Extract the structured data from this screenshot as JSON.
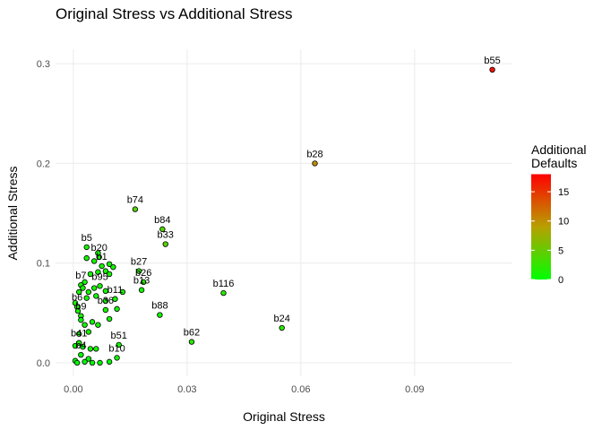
{
  "chart_data": {
    "type": "scatter",
    "title": "Original Stress vs Additional Stress",
    "x_label": "Original Stress",
    "y_label": "Additional Stress",
    "xlim": [
      -0.0047,
      0.1158
    ],
    "ylim": [
      -0.0135,
      0.3145
    ],
    "xticks": [
      {
        "value": 0,
        "label": "0.00"
      },
      0.03,
      0.06,
      0.09
    ],
    "yticks": [
      {
        "value": 0,
        "label": "0.0"
      },
      0.1,
      0.2,
      0.3
    ],
    "grid": true,
    "legend_title": "Additional Defaults",
    "color_scale": {
      "low": "#00ff00",
      "mid": "#b8a000",
      "high": "#ff0000",
      "limits": [
        0,
        18
      ],
      "ticks": [
        0,
        5,
        10,
        15
      ]
    },
    "series": [
      {
        "x": [
          0.1105,
          0.0637,
          0.0163,
          0.0235,
          0.0243,
          0.0396,
          0.055,
          0.0312,
          0.0228,
          0.0173,
          0.0185,
          0.018,
          0.0035,
          0.0068,
          0.0075,
          0.007,
          0.002,
          0.011,
          0.0085,
          0.001,
          0.002,
          0.012,
          0.0115,
          0.0015,
          0.002,
          0.0005,
          0.001,
          0.003,
          0.004,
          0.005,
          0.007,
          0.0095,
          0.0045,
          0.006,
          0.0005,
          0.0025,
          0.0015,
          0.004,
          0.003,
          0.005,
          0.0065,
          0.002,
          0.0095,
          0.0005,
          0.0035,
          0.006,
          0.0085,
          0.0115,
          0.0015,
          0.004,
          0.0055,
          0.0085,
          0.013,
          0.003,
          0.0045,
          0.0065,
          0.0085,
          0.0105,
          0.0095,
          0.0035,
          0.0055,
          0.0065,
          0.0095,
          0.0025,
          0.0012
        ],
        "values": [
          0.294,
          0.2,
          0.154,
          0.134,
          0.119,
          0.07,
          0.035,
          0.021,
          0.048,
          0.092,
          0.081,
          0.073,
          0.116,
          0.106,
          0.097,
          0.077,
          0.078,
          0.064,
          0.053,
          0.056,
          0.047,
          0.018,
          0.005,
          0.02,
          0.008,
          0.002,
          0.0,
          0.001,
          0.004,
          0.0,
          0.0,
          0.001,
          0.014,
          0.014,
          0.017,
          0.016,
          0.029,
          0.031,
          0.038,
          0.041,
          0.038,
          0.043,
          0.044,
          0.06,
          0.065,
          0.067,
          0.062,
          0.054,
          0.071,
          0.071,
          0.075,
          0.072,
          0.071,
          0.081,
          0.089,
          0.091,
          0.092,
          0.096,
          0.099,
          0.105,
          0.102,
          0.11,
          0.089,
          0.075,
          0.052
        ],
        "defaults": [
          17,
          10,
          4,
          4,
          4,
          2,
          2,
          2,
          1,
          2,
          2,
          1,
          1,
          1,
          1,
          1,
          1,
          1,
          1,
          1,
          1,
          1,
          1,
          1,
          0,
          0,
          0,
          0,
          0,
          0,
          0,
          0,
          1,
          1,
          0,
          0,
          1,
          1,
          1,
          1,
          1,
          0,
          1,
          1,
          1,
          1,
          1,
          1,
          1,
          1,
          1,
          1,
          1,
          1,
          1,
          1,
          1,
          1,
          1,
          1,
          1,
          1,
          1,
          1,
          1
        ],
        "labels": [
          "b55",
          "b28",
          "b74",
          "b84",
          "b33",
          "b116",
          "b24",
          "b62",
          "b88",
          "b27",
          "b26",
          "b13",
          "b5",
          "b20",
          "b1",
          "b95",
          "b7",
          "b11",
          "b36",
          "b6",
          "b9",
          "b51",
          "b10",
          "b41",
          "b4",
          null,
          null,
          null,
          null,
          null,
          null,
          null,
          null,
          null,
          null,
          null,
          null,
          null,
          null,
          null,
          null,
          null,
          null,
          null,
          null,
          null,
          null,
          null,
          null,
          null,
          null,
          null,
          null,
          null,
          null,
          null,
          null,
          null,
          null,
          null,
          null,
          null,
          null,
          null,
          null
        ]
      }
    ]
  }
}
